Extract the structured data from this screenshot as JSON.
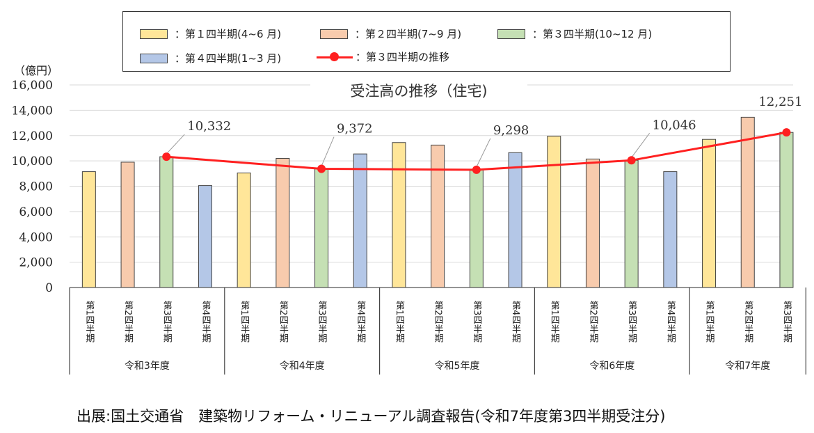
{
  "legend": {
    "items": [
      {
        "key": "q1",
        "label": "：第１四半期(4~6 月)",
        "color": "#ffe699"
      },
      {
        "key": "q2",
        "label": "：第２四半期(7~9 月)",
        "color": "#f8cbad"
      },
      {
        "key": "q3",
        "label": "：第３四半期(10~12 月)",
        "color": "#c5e0b4"
      },
      {
        "key": "q4",
        "label": "：第４四半期(1~3 月)",
        "color": "#b4c7e7"
      },
      {
        "key": "trend",
        "label": "：第３四半期の推移",
        "color": "#ff2020"
      }
    ]
  },
  "unit_label": "（億円）",
  "source": "出展:国土交通省　建築物リフォーム・リニューアル調査報告(令和7年度第3四半期受注分)",
  "chart_data": {
    "type": "bar",
    "title": "受注高の推移（住宅)",
    "ylabel": "（億円）",
    "ylim": [
      0,
      16000
    ],
    "yticks": [
      "0",
      "2,000",
      "4,000",
      "6,000",
      "8,000",
      "10,000",
      "12,000",
      "14,000",
      "16,000"
    ],
    "grid": true,
    "legend_position": "top",
    "groups": [
      {
        "label": "令和3年度",
        "categories": [
          "第1四半期",
          "第2四半期",
          "第3四半期",
          "第4四半期"
        ],
        "values": [
          9150,
          9900,
          10332,
          8050
        ]
      },
      {
        "label": "令和4年度",
        "categories": [
          "第1四半期",
          "第2四半期",
          "第3四半期",
          "第4四半期"
        ],
        "values": [
          9050,
          10200,
          9372,
          10550
        ]
      },
      {
        "label": "令和5年度",
        "categories": [
          "第1四半期",
          "第2四半期",
          "第3四半期",
          "第4四半期"
        ],
        "values": [
          11450,
          11250,
          9298,
          10650
        ]
      },
      {
        "label": "令和6年度",
        "categories": [
          "第1四半期",
          "第2四半期",
          "第3四半期",
          "第4四半期"
        ],
        "values": [
          11950,
          10150,
          10046,
          9150
        ]
      },
      {
        "label": "令和7年度",
        "categories": [
          "第1四半期",
          "第2四半期",
          "第3四半期"
        ],
        "values": [
          11700,
          13450,
          12251
        ]
      }
    ],
    "quarter_colors": [
      "#ffe699",
      "#f8cbad",
      "#c5e0b4",
      "#b4c7e7"
    ],
    "trend_series": {
      "name": "第３四半期の推移",
      "values": [
        10332,
        9372,
        9298,
        10046,
        12251
      ],
      "labels": [
        "10,332",
        "9,372",
        "9,298",
        "10,046",
        "12,251"
      ],
      "color": "#ff2020"
    }
  }
}
